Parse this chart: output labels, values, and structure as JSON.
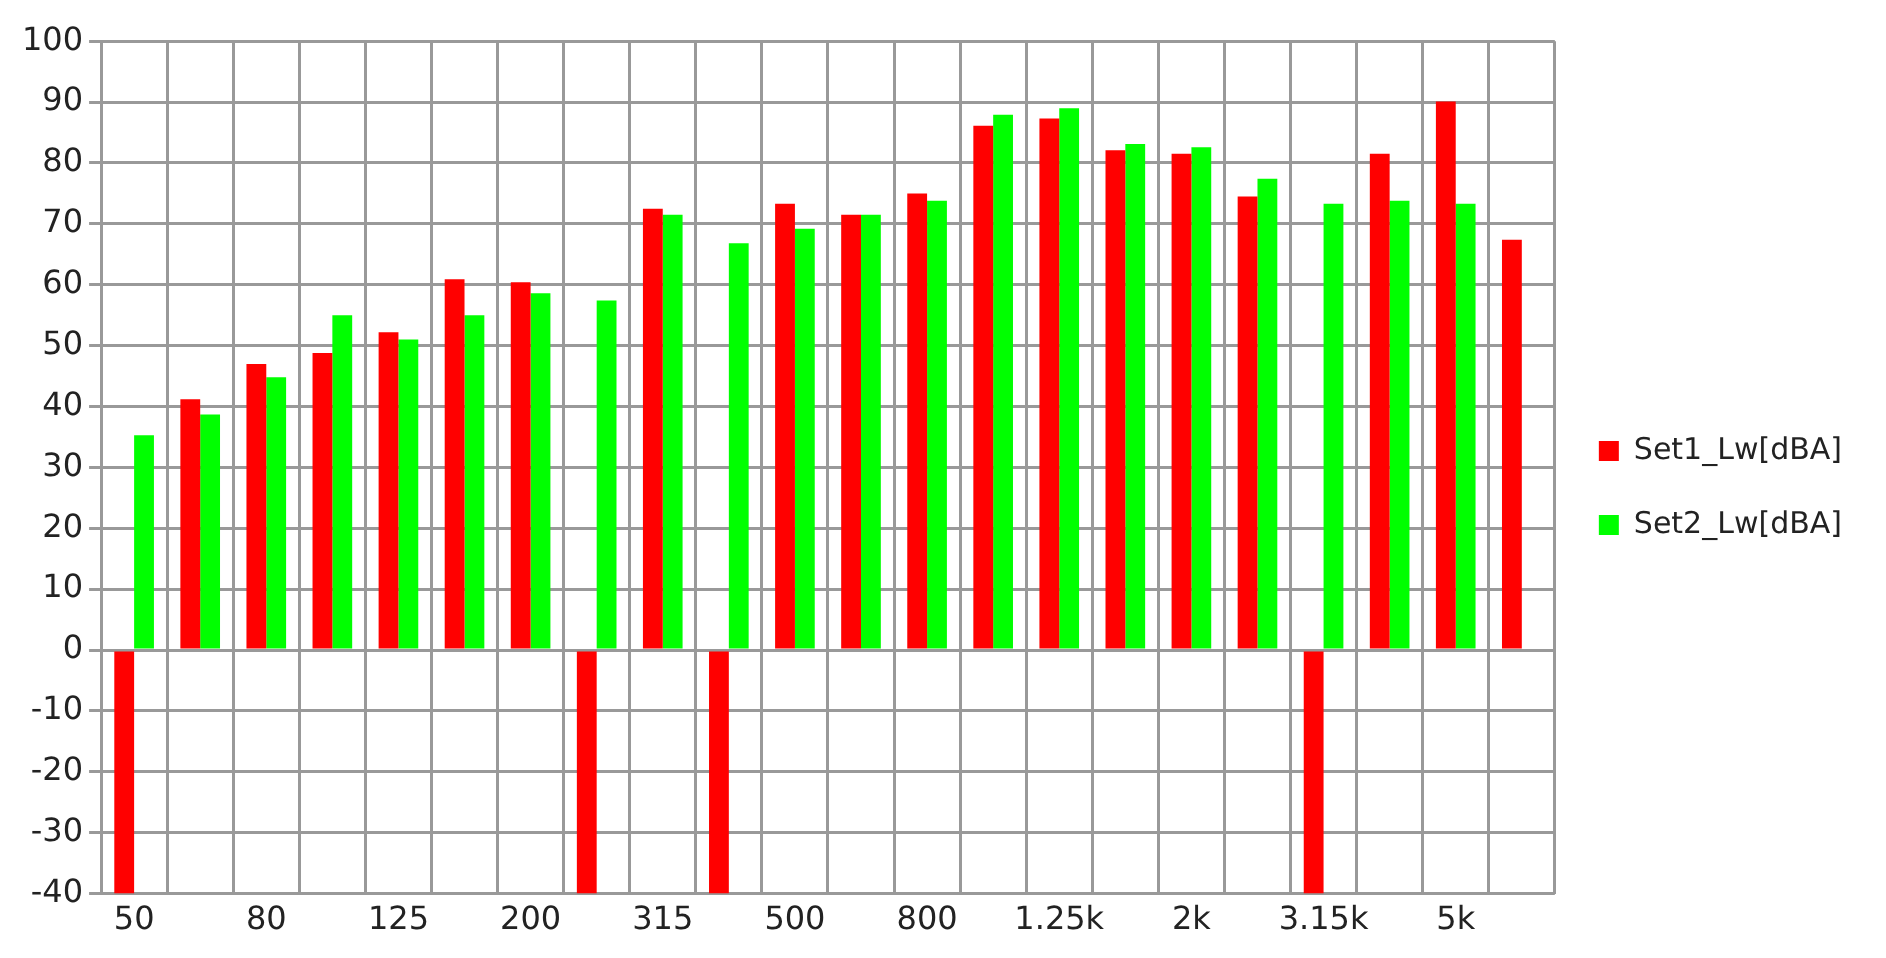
{
  "chart_data": {
    "type": "bar",
    "categories": [
      "50",
      null,
      "80",
      null,
      "125",
      null,
      "200",
      null,
      "315",
      null,
      "500",
      null,
      "800",
      null,
      "1.25k",
      null,
      "2k",
      null,
      "3.15k",
      null,
      "5k",
      null
    ],
    "series": [
      {
        "name": "Set1_Lw[dBA]",
        "color": "#ff0000",
        "values": [
          -40,
          41.2,
          47,
          48.8,
          52.2,
          60.9,
          60.4,
          -40,
          72.5,
          -40,
          73.3,
          71.5,
          75,
          86.1,
          87.3,
          82.1,
          81.5,
          74.5,
          -40,
          81.5,
          90.1,
          67.4
        ]
      },
      {
        "name": "Set2_Lw[dBA]",
        "color": "#00ff00",
        "values": [
          35.3,
          38.7,
          44.8,
          55,
          51,
          55,
          58.6,
          57.4,
          71.5,
          66.8,
          69.2,
          71.5,
          73.8,
          87.9,
          89,
          83.1,
          82.6,
          77.4,
          73.3,
          73.8,
          73.3,
          null
        ]
      }
    ],
    "ylim": [
      -40,
      100
    ],
    "yticks": [
      -40,
      -30,
      -20,
      -10,
      0,
      10,
      20,
      30,
      40,
      50,
      60,
      70,
      80,
      90,
      100
    ],
    "grid": true,
    "legend": "right"
  }
}
